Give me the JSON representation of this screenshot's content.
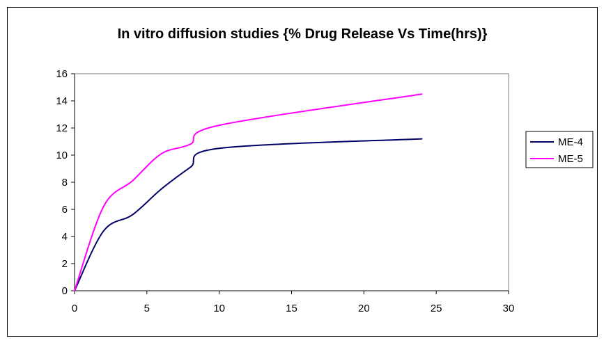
{
  "chart_data": {
    "type": "line",
    "title": "In vitro diffusion studies {% Drug Release Vs Time(hrs)}",
    "xlabel": "",
    "ylabel": "",
    "xlim": [
      0,
      30
    ],
    "ylim": [
      0,
      16
    ],
    "xticks": [
      0,
      5,
      10,
      15,
      20,
      25,
      30
    ],
    "yticks": [
      0,
      2,
      4,
      6,
      8,
      10,
      12,
      14,
      16
    ],
    "grid": false,
    "legend_position": "right",
    "series": [
      {
        "name": "ME-4",
        "color": "#000066",
        "x": [
          0,
          2,
          4,
          6,
          8,
          10,
          24
        ],
        "y": [
          0,
          4.4,
          5.6,
          7.5,
          9.1,
          10.5,
          11.2
        ]
      },
      {
        "name": "ME-5",
        "color": "#ff00ff",
        "x": [
          0,
          2,
          4,
          6,
          8,
          10,
          24
        ],
        "y": [
          0,
          6.2,
          8.1,
          10.1,
          10.8,
          12.2,
          14.5
        ]
      }
    ]
  }
}
